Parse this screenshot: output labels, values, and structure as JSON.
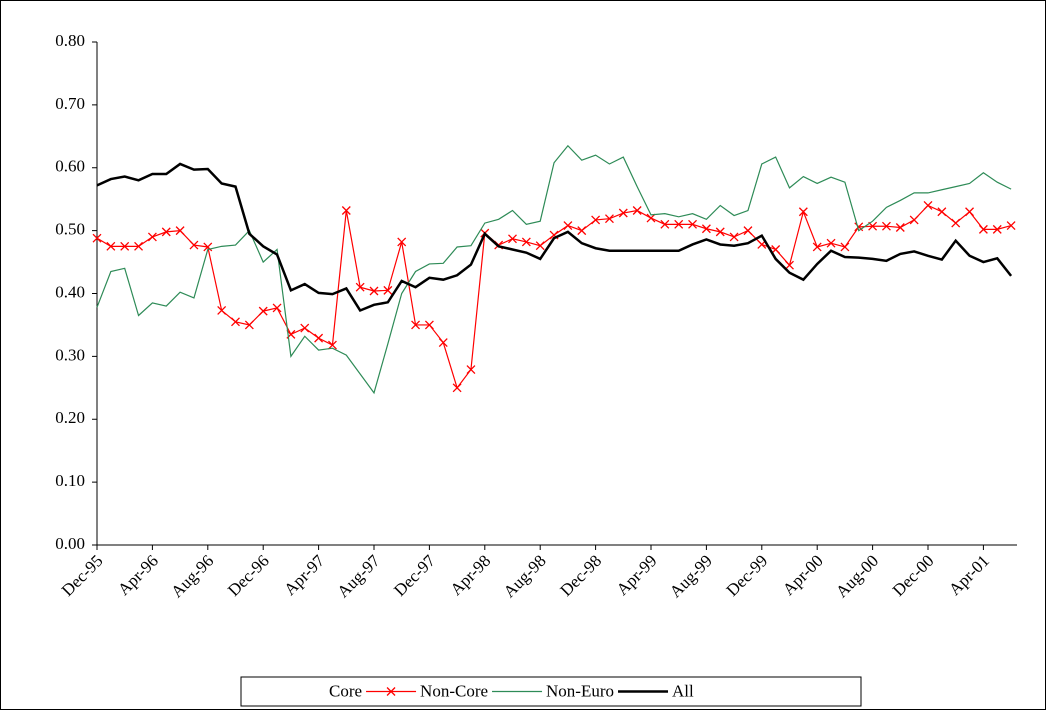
{
  "chart_data": {
    "type": "line",
    "categories": [
      "Dec-95",
      null,
      null,
      null,
      "Apr-96",
      null,
      null,
      null,
      "Aug-96",
      null,
      null,
      null,
      "Dec-96",
      null,
      null,
      null,
      "Apr-97",
      null,
      null,
      null,
      "Aug-97",
      null,
      null,
      null,
      "Dec-97",
      null,
      null,
      null,
      "Apr-98",
      null,
      null,
      null,
      "Aug-98",
      null,
      null,
      null,
      "Dec-98",
      null,
      null,
      null,
      "Apr-99",
      null,
      null,
      null,
      "Aug-99",
      null,
      null,
      null,
      "Dec-99",
      null,
      null,
      null,
      "Apr-00",
      null,
      null,
      null,
      "Aug-00",
      null,
      null,
      null,
      "Dec-00",
      null,
      null,
      null,
      "Apr-01",
      null,
      null
    ],
    "ylim": [
      0,
      0.8
    ],
    "yticks": [
      {
        "value": 0,
        "label": "0.00"
      },
      {
        "value": 0.1,
        "label": "0.10"
      },
      {
        "value": 0.2,
        "label": "0.20"
      },
      {
        "value": 0.3,
        "label": "0.30"
      },
      {
        "value": 0.4,
        "label": "0.40"
      },
      {
        "value": 0.5,
        "label": "0.50"
      },
      {
        "value": 0.6,
        "label": "0.60"
      },
      {
        "value": 0.7,
        "label": "0.70"
      },
      {
        "value": 0.8,
        "label": "0.80"
      }
    ],
    "legend": "bottom",
    "series": [
      {
        "name": "Core",
        "color": "#ffffff",
        "values": [
          null,
          null,
          null,
          null,
          null,
          null,
          null,
          null,
          null,
          null,
          null,
          null,
          null,
          null,
          null,
          null,
          null,
          null,
          null,
          null,
          null,
          null,
          null,
          null,
          null,
          null,
          null,
          null,
          null,
          null,
          null,
          null,
          null,
          null,
          null,
          null,
          null,
          null,
          null,
          null,
          null,
          null,
          null,
          null,
          null,
          null,
          null,
          null,
          null,
          null,
          null,
          null,
          null,
          null,
          null,
          null,
          null,
          null,
          null,
          null,
          null,
          null,
          null,
          null,
          null,
          null,
          null
        ]
      },
      {
        "name": "Non-Core",
        "color": "#ff0000",
        "marker": "x",
        "values": [
          0.488,
          0.475,
          0.475,
          0.475,
          0.49,
          0.498,
          0.5,
          0.477,
          0.474,
          0.373,
          0.355,
          0.35,
          0.372,
          0.377,
          0.335,
          0.345,
          0.329,
          0.318,
          0.532,
          0.41,
          0.404,
          0.405,
          0.482,
          0.35,
          0.35,
          0.322,
          0.25,
          0.279,
          0.496,
          0.477,
          0.487,
          0.482,
          0.476,
          0.493,
          0.508,
          0.5,
          0.517,
          0.519,
          0.528,
          0.532,
          0.52,
          0.51,
          0.51,
          0.51,
          0.503,
          0.498,
          0.49,
          0.5,
          0.478,
          0.47,
          0.445,
          0.53,
          0.474,
          0.48,
          0.474,
          0.506,
          0.507,
          0.507,
          0.505,
          0.517,
          0.54,
          0.53,
          0.512,
          0.53,
          0.502,
          0.502,
          0.508
        ]
      },
      {
        "name": "Non-Euro",
        "color": "#2e8b57",
        "values": [
          0.378,
          0.435,
          0.44,
          0.365,
          0.385,
          0.38,
          0.402,
          0.393,
          0.47,
          0.475,
          0.477,
          0.5,
          0.45,
          0.47,
          0.3,
          0.332,
          0.31,
          0.313,
          0.302,
          0.272,
          0.242,
          0.32,
          0.4,
          0.435,
          0.447,
          0.448,
          0.474,
          0.476,
          0.512,
          0.518,
          0.532,
          0.51,
          0.515,
          0.608,
          0.635,
          0.612,
          0.62,
          0.606,
          0.617,
          0.57,
          0.525,
          0.527,
          0.522,
          0.527,
          0.518,
          0.54,
          0.524,
          0.532,
          0.606,
          0.617,
          0.568,
          0.586,
          0.575,
          0.585,
          0.577,
          0.5,
          0.515,
          0.537,
          0.548,
          0.56,
          0.56,
          0.565,
          0.57,
          0.575,
          0.592,
          0.577,
          0.566
        ]
      },
      {
        "name": "All",
        "color": "#000000",
        "width": 2.5,
        "values": [
          0.572,
          0.582,
          0.586,
          0.58,
          0.59,
          0.59,
          0.606,
          0.597,
          0.598,
          0.575,
          0.57,
          0.495,
          0.475,
          0.462,
          0.405,
          0.415,
          0.401,
          0.399,
          0.408,
          0.373,
          0.382,
          0.386,
          0.42,
          0.41,
          0.425,
          0.422,
          0.429,
          0.446,
          0.495,
          0.475,
          0.47,
          0.465,
          0.455,
          0.488,
          0.498,
          0.48,
          0.472,
          0.468,
          0.468,
          0.468,
          0.468,
          0.468,
          0.468,
          0.478,
          0.486,
          0.478,
          0.476,
          0.48,
          0.492,
          0.455,
          0.433,
          0.422,
          0.447,
          0.468,
          0.458,
          0.457,
          0.455,
          0.452,
          0.463,
          0.467,
          0.46,
          0.454,
          0.484,
          0.46,
          0.45,
          0.456,
          0.428
        ]
      }
    ]
  }
}
